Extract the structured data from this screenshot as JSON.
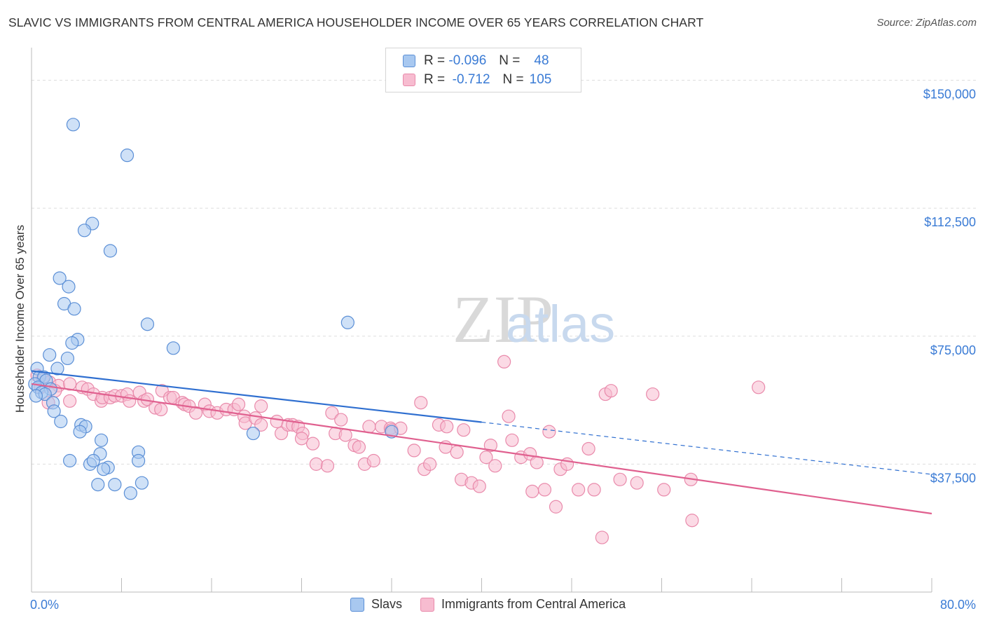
{
  "header": {
    "title": "SLAVIC VS IMMIGRANTS FROM CENTRAL AMERICA HOUSEHOLDER INCOME OVER 65 YEARS CORRELATION CHART",
    "source": "Source: ZipAtlas.com"
  },
  "legend": {
    "rows": [
      {
        "r_label": "R =",
        "r_value": "-0.096",
        "n_label": "N =",
        "n_value": "48"
      },
      {
        "r_label": "R =",
        "r_value": "-0.712",
        "n_label": "N =",
        "n_value": "105"
      }
    ]
  },
  "bottom_legend": {
    "series_a": "Slavs",
    "series_b": "Immigrants from Central America"
  },
  "colors": {
    "blue_fill": "#a8c8f0",
    "blue_stroke": "#5b8fd6",
    "blue_line": "#2f6fd0",
    "pink_fill": "#f7bcd0",
    "pink_stroke": "#e98aab",
    "pink_line": "#e0608f",
    "axis_text": "#3a7bd5",
    "grid": "#dddddd"
  },
  "chart_data": {
    "type": "scatter",
    "title": "SLAVIC VS IMMIGRANTS FROM CENTRAL AMERICA HOUSEHOLDER INCOME OVER 65 YEARS CORRELATION CHART",
    "xlabel": "",
    "ylabel": "Householder Income Over 65 years",
    "xlim": [
      0,
      80
    ],
    "ylim": [
      0,
      157500
    ],
    "x_tick_labels": [
      "0.0%",
      "80.0%"
    ],
    "y_ticks": [
      37500,
      75000,
      112500,
      150000
    ],
    "y_tick_labels": [
      "$37,500",
      "$75,000",
      "$112,500",
      "$150,000"
    ],
    "grid": true,
    "watermark": "ZIPatlas",
    "series": [
      {
        "name": "Slavs",
        "r": -0.096,
        "n": 48,
        "trend": {
          "x0": 0,
          "y0": 64800,
          "x1": 40,
          "y1": 49800,
          "dashed_to_x": 80,
          "dashed_to_y": 34500
        },
        "points": [
          [
            3.7,
            137000
          ],
          [
            8.5,
            128000
          ],
          [
            5.4,
            108000
          ],
          [
            4.7,
            106000
          ],
          [
            7.0,
            100000
          ],
          [
            2.5,
            92000
          ],
          [
            3.3,
            89500
          ],
          [
            2.9,
            84500
          ],
          [
            3.8,
            83000
          ],
          [
            10.3,
            78500
          ],
          [
            28.1,
            79000
          ],
          [
            12.6,
            71500
          ],
          [
            4.1,
            74000
          ],
          [
            3.6,
            73000
          ],
          [
            1.6,
            69500
          ],
          [
            3.2,
            68500
          ],
          [
            0.5,
            65500
          ],
          [
            2.3,
            65500
          ],
          [
            0.7,
            63000
          ],
          [
            1.1,
            63000
          ],
          [
            1.3,
            62000
          ],
          [
            0.3,
            61000
          ],
          [
            0.6,
            60000
          ],
          [
            1.7,
            59500
          ],
          [
            0.9,
            58500
          ],
          [
            1.2,
            58000
          ],
          [
            0.4,
            57500
          ],
          [
            1.9,
            55500
          ],
          [
            2.0,
            53000
          ],
          [
            2.6,
            50000
          ],
          [
            4.4,
            49000
          ],
          [
            4.8,
            48500
          ],
          [
            4.3,
            47000
          ],
          [
            6.2,
            44500
          ],
          [
            32.0,
            47000
          ],
          [
            19.7,
            46500
          ],
          [
            9.5,
            41000
          ],
          [
            6.1,
            40500
          ],
          [
            3.4,
            38500
          ],
          [
            5.2,
            37500
          ],
          [
            5.5,
            38500
          ],
          [
            6.8,
            36500
          ],
          [
            9.5,
            38500
          ],
          [
            6.4,
            36000
          ],
          [
            9.8,
            32000
          ],
          [
            5.9,
            31500
          ],
          [
            7.4,
            31500
          ],
          [
            8.8,
            29000
          ]
        ]
      },
      {
        "name": "Immigrants from Central America",
        "r": -0.712,
        "n": 105,
        "trend": {
          "x0": 0,
          "y0": 61000,
          "x1": 80,
          "y1": 23000
        },
        "points": [
          [
            0.5,
            63500
          ],
          [
            1.0,
            62500
          ],
          [
            1.6,
            61500
          ],
          [
            2.4,
            60500
          ],
          [
            3.4,
            61000
          ],
          [
            0.8,
            60000
          ],
          [
            2.1,
            59000
          ],
          [
            4.5,
            60000
          ],
          [
            5.0,
            59500
          ],
          [
            1.5,
            55500
          ],
          [
            3.4,
            56000
          ],
          [
            5.5,
            58000
          ],
          [
            6.2,
            56000
          ],
          [
            6.3,
            57000
          ],
          [
            7.0,
            57000
          ],
          [
            7.4,
            57500
          ],
          [
            8.0,
            57500
          ],
          [
            8.5,
            58000
          ],
          [
            8.7,
            56000
          ],
          [
            9.6,
            58500
          ],
          [
            10.0,
            56000
          ],
          [
            10.3,
            56500
          ],
          [
            11.0,
            54000
          ],
          [
            11.5,
            53500
          ],
          [
            11.6,
            59000
          ],
          [
            12.3,
            57000
          ],
          [
            12.6,
            57000
          ],
          [
            13.4,
            55500
          ],
          [
            13.6,
            55000
          ],
          [
            14.0,
            54500
          ],
          [
            14.6,
            52500
          ],
          [
            15.4,
            55000
          ],
          [
            15.8,
            53000
          ],
          [
            16.5,
            52500
          ],
          [
            17.3,
            53500
          ],
          [
            18.0,
            53500
          ],
          [
            18.4,
            55000
          ],
          [
            18.9,
            51500
          ],
          [
            19.0,
            49500
          ],
          [
            19.9,
            51000
          ],
          [
            20.4,
            49000
          ],
          [
            20.4,
            54500
          ],
          [
            21.8,
            50000
          ],
          [
            22.2,
            46500
          ],
          [
            22.8,
            49000
          ],
          [
            23.2,
            49000
          ],
          [
            23.7,
            48500
          ],
          [
            24.1,
            46500
          ],
          [
            25.0,
            43500
          ],
          [
            25.3,
            37500
          ],
          [
            26.3,
            37000
          ],
          [
            26.7,
            52500
          ],
          [
            27.0,
            46500
          ],
          [
            27.5,
            50500
          ],
          [
            27.9,
            46000
          ],
          [
            28.7,
            43000
          ],
          [
            29.1,
            42500
          ],
          [
            29.6,
            37500
          ],
          [
            30.0,
            48500
          ],
          [
            30.4,
            38500
          ],
          [
            31.1,
            48500
          ],
          [
            31.9,
            48000
          ],
          [
            32.0,
            47500
          ],
          [
            32.8,
            48000
          ],
          [
            34.0,
            41500
          ],
          [
            34.6,
            55500
          ],
          [
            34.9,
            36000
          ],
          [
            35.4,
            37500
          ],
          [
            36.2,
            49000
          ],
          [
            36.9,
            48500
          ],
          [
            36.8,
            42500
          ],
          [
            37.8,
            41000
          ],
          [
            38.4,
            47500
          ],
          [
            38.2,
            33000
          ],
          [
            39.1,
            32000
          ],
          [
            39.8,
            31000
          ],
          [
            40.4,
            39500
          ],
          [
            40.8,
            43000
          ],
          [
            41.2,
            37000
          ],
          [
            42.0,
            67500
          ],
          [
            42.4,
            51500
          ],
          [
            42.7,
            44500
          ],
          [
            43.5,
            39500
          ],
          [
            44.3,
            40500
          ],
          [
            44.5,
            29500
          ],
          [
            44.9,
            38000
          ],
          [
            45.6,
            30000
          ],
          [
            46.0,
            47000
          ],
          [
            46.6,
            25000
          ],
          [
            47.0,
            36000
          ],
          [
            47.6,
            37500
          ],
          [
            48.6,
            30000
          ],
          [
            49.5,
            42000
          ],
          [
            50.0,
            30000
          ],
          [
            50.7,
            16000
          ],
          [
            51.0,
            58000
          ],
          [
            52.3,
            33000
          ],
          [
            53.8,
            32000
          ],
          [
            55.2,
            58000
          ],
          [
            56.2,
            30000
          ],
          [
            58.6,
            33000
          ],
          [
            58.7,
            21000
          ],
          [
            64.6,
            60000
          ],
          [
            51.5,
            59000
          ],
          [
            24.0,
            45000
          ]
        ]
      }
    ]
  }
}
